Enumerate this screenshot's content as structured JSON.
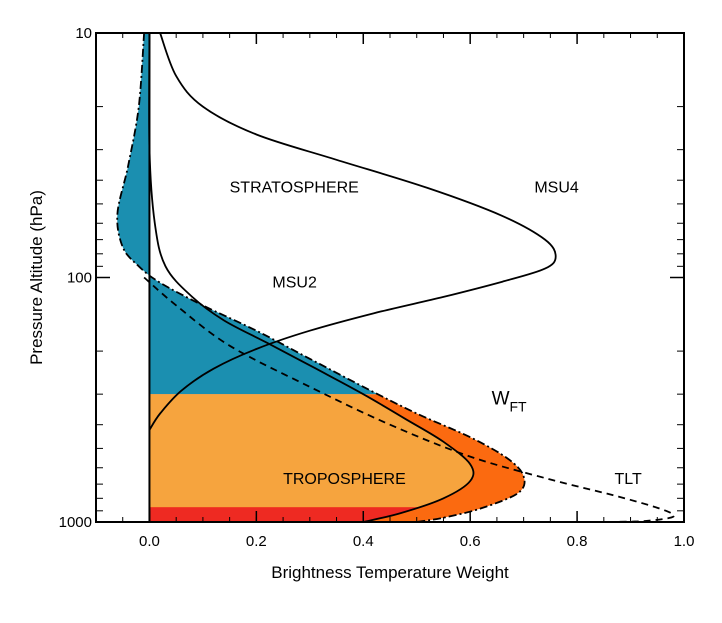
{
  "chart_data": {
    "type": "line",
    "xlabel": "Brightness Temperature Weight",
    "ylabel": "Pressure Altitude (hPa)",
    "xlim": [
      -0.1,
      1.0
    ],
    "ylim": [
      1000,
      10
    ],
    "yscale": "log",
    "x_ticks": [
      0.0,
      0.2,
      0.4,
      0.6,
      0.8,
      1.0
    ],
    "x_tick_labels": [
      "0.0",
      "0.2",
      "0.4",
      "0.6",
      "0.8",
      "1.0"
    ],
    "y_ticks": [
      1000,
      100,
      10
    ],
    "y_tick_labels": [
      "1000",
      "100",
      "10"
    ],
    "grid": false,
    "colors": {
      "stratosphere_fill": "#1b8fb0",
      "troposphere_fill": "#f6a43e",
      "wft_fill": "#fb6a10",
      "surface_fill": "#ee2a22",
      "line": "#000000"
    },
    "series": [
      {
        "name": "MSU4",
        "style": "solid",
        "points": [
          {
            "x": 0.02,
            "y": 10
          },
          {
            "x": 0.05,
            "y": 15
          },
          {
            "x": 0.1,
            "y": 20
          },
          {
            "x": 0.2,
            "y": 26
          },
          {
            "x": 0.35,
            "y": 33
          },
          {
            "x": 0.52,
            "y": 43
          },
          {
            "x": 0.66,
            "y": 56
          },
          {
            "x": 0.74,
            "y": 70
          },
          {
            "x": 0.76,
            "y": 82
          },
          {
            "x": 0.74,
            "y": 92
          },
          {
            "x": 0.66,
            "y": 104
          },
          {
            "x": 0.55,
            "y": 120
          },
          {
            "x": 0.42,
            "y": 140
          },
          {
            "x": 0.3,
            "y": 165
          },
          {
            "x": 0.2,
            "y": 196
          },
          {
            "x": 0.12,
            "y": 236
          },
          {
            "x": 0.06,
            "y": 290
          },
          {
            "x": 0.02,
            "y": 360
          },
          {
            "x": 0.0,
            "y": 420
          }
        ]
      },
      {
        "name": "MSU2",
        "style": "solid",
        "points": [
          {
            "x": 0.0,
            "y": 10
          },
          {
            "x": 0.0,
            "y": 30
          },
          {
            "x": 0.01,
            "y": 60
          },
          {
            "x": 0.03,
            "y": 90
          },
          {
            "x": 0.08,
            "y": 120
          },
          {
            "x": 0.14,
            "y": 150
          },
          {
            "x": 0.22,
            "y": 185
          },
          {
            "x": 0.31,
            "y": 235
          },
          {
            "x": 0.4,
            "y": 300
          },
          {
            "x": 0.48,
            "y": 380
          },
          {
            "x": 0.55,
            "y": 470
          },
          {
            "x": 0.6,
            "y": 580
          },
          {
            "x": 0.6,
            "y": 680
          },
          {
            "x": 0.55,
            "y": 800
          },
          {
            "x": 0.47,
            "y": 920
          },
          {
            "x": 0.4,
            "y": 1000
          }
        ]
      },
      {
        "name": "W_FT",
        "label_main": "W",
        "label_sub": "FT",
        "style": "dash-dot",
        "points": [
          {
            "x": -0.01,
            "y": 10
          },
          {
            "x": -0.02,
            "y": 20
          },
          {
            "x": -0.04,
            "y": 35
          },
          {
            "x": -0.06,
            "y": 55
          },
          {
            "x": -0.05,
            "y": 75
          },
          {
            "x": -0.02,
            "y": 90
          },
          {
            "x": 0.02,
            "y": 105
          },
          {
            "x": 0.1,
            "y": 130
          },
          {
            "x": 0.2,
            "y": 165
          },
          {
            "x": 0.3,
            "y": 215
          },
          {
            "x": 0.4,
            "y": 280
          },
          {
            "x": 0.5,
            "y": 360
          },
          {
            "x": 0.6,
            "y": 450
          },
          {
            "x": 0.67,
            "y": 550
          },
          {
            "x": 0.7,
            "y": 650
          },
          {
            "x": 0.69,
            "y": 760
          },
          {
            "x": 0.62,
            "y": 880
          },
          {
            "x": 0.55,
            "y": 960
          },
          {
            "x": 0.5,
            "y": 1000
          }
        ]
      },
      {
        "name": "TLT",
        "style": "dashed",
        "points": [
          {
            "x": -0.01,
            "y": 100
          },
          {
            "x": 0.05,
            "y": 130
          },
          {
            "x": 0.15,
            "y": 190
          },
          {
            "x": 0.3,
            "y": 280
          },
          {
            "x": 0.45,
            "y": 400
          },
          {
            "x": 0.6,
            "y": 540
          },
          {
            "x": 0.75,
            "y": 670
          },
          {
            "x": 0.88,
            "y": 790
          },
          {
            "x": 0.96,
            "y": 890
          },
          {
            "x": 0.98,
            "y": 950
          },
          {
            "x": 0.93,
            "y": 990
          },
          {
            "x": 0.86,
            "y": 1000
          }
        ]
      }
    ],
    "regions": [
      {
        "name": "stratosphere-fill",
        "boundary": "W_FT",
        "y_range": [
          10,
          300
        ]
      },
      {
        "name": "wft-fill",
        "boundary": "W_FT",
        "y_range": [
          300,
          1000
        ]
      },
      {
        "name": "troposphere-fill",
        "boundary": "MSU2",
        "y_range": [
          300,
          870
        ]
      },
      {
        "name": "surface-fill",
        "boundary": "MSU2",
        "y_range": [
          870,
          1000
        ]
      }
    ],
    "annotations": [
      {
        "text": "STRATOSPHERE",
        "x": 0.15,
        "y": 45
      },
      {
        "text": "TROPOSPHERE",
        "x": 0.25,
        "y": 700
      },
      {
        "text": "MSU4",
        "x": 0.72,
        "y": 45
      },
      {
        "text": "MSU2",
        "x": 0.23,
        "y": 110
      },
      {
        "text": "TLT",
        "x": 0.87,
        "y": 700
      },
      {
        "text": "W_FT",
        "x": 0.64,
        "y": 330
      }
    ]
  }
}
